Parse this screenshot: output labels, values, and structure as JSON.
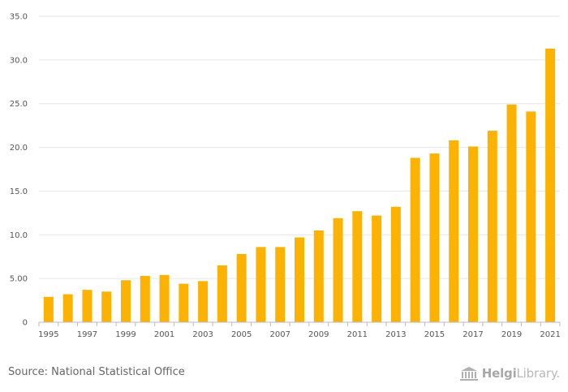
{
  "chart_data": {
    "type": "bar",
    "title": "",
    "xlabel": "",
    "ylabel": "",
    "categories": [
      "1995",
      "1996",
      "1997",
      "1998",
      "1999",
      "2000",
      "2001",
      "2002",
      "2003",
      "2004",
      "2005",
      "2006",
      "2007",
      "2008",
      "2009",
      "2010",
      "2011",
      "2012",
      "2013",
      "2014",
      "2015",
      "2016",
      "2017",
      "2018",
      "2019",
      "2020",
      "2021"
    ],
    "x_tick_labels": [
      "1995",
      "1997",
      "1999",
      "2001",
      "2003",
      "2005",
      "2007",
      "2009",
      "2011",
      "2013",
      "2015",
      "2017",
      "2019",
      "2021"
    ],
    "values": [
      2.9,
      3.2,
      3.7,
      3.5,
      4.8,
      5.3,
      5.4,
      4.4,
      4.7,
      6.5,
      7.8,
      8.6,
      8.6,
      9.7,
      10.5,
      11.9,
      12.7,
      12.2,
      13.2,
      18.8,
      19.3,
      20.8,
      20.1,
      21.9,
      24.9,
      24.1,
      31.3
    ],
    "y_tick_labels": [
      "0",
      "5.00",
      "10.0",
      "15.0",
      "20.0",
      "25.0",
      "30.0",
      "35.0"
    ],
    "ylim": [
      0,
      35
    ],
    "grid": true,
    "bar_color": "#fbb203"
  },
  "footer": {
    "source": "Source: National Statistical Office",
    "logo_bold": "Helgi",
    "logo_rest": "Library."
  }
}
